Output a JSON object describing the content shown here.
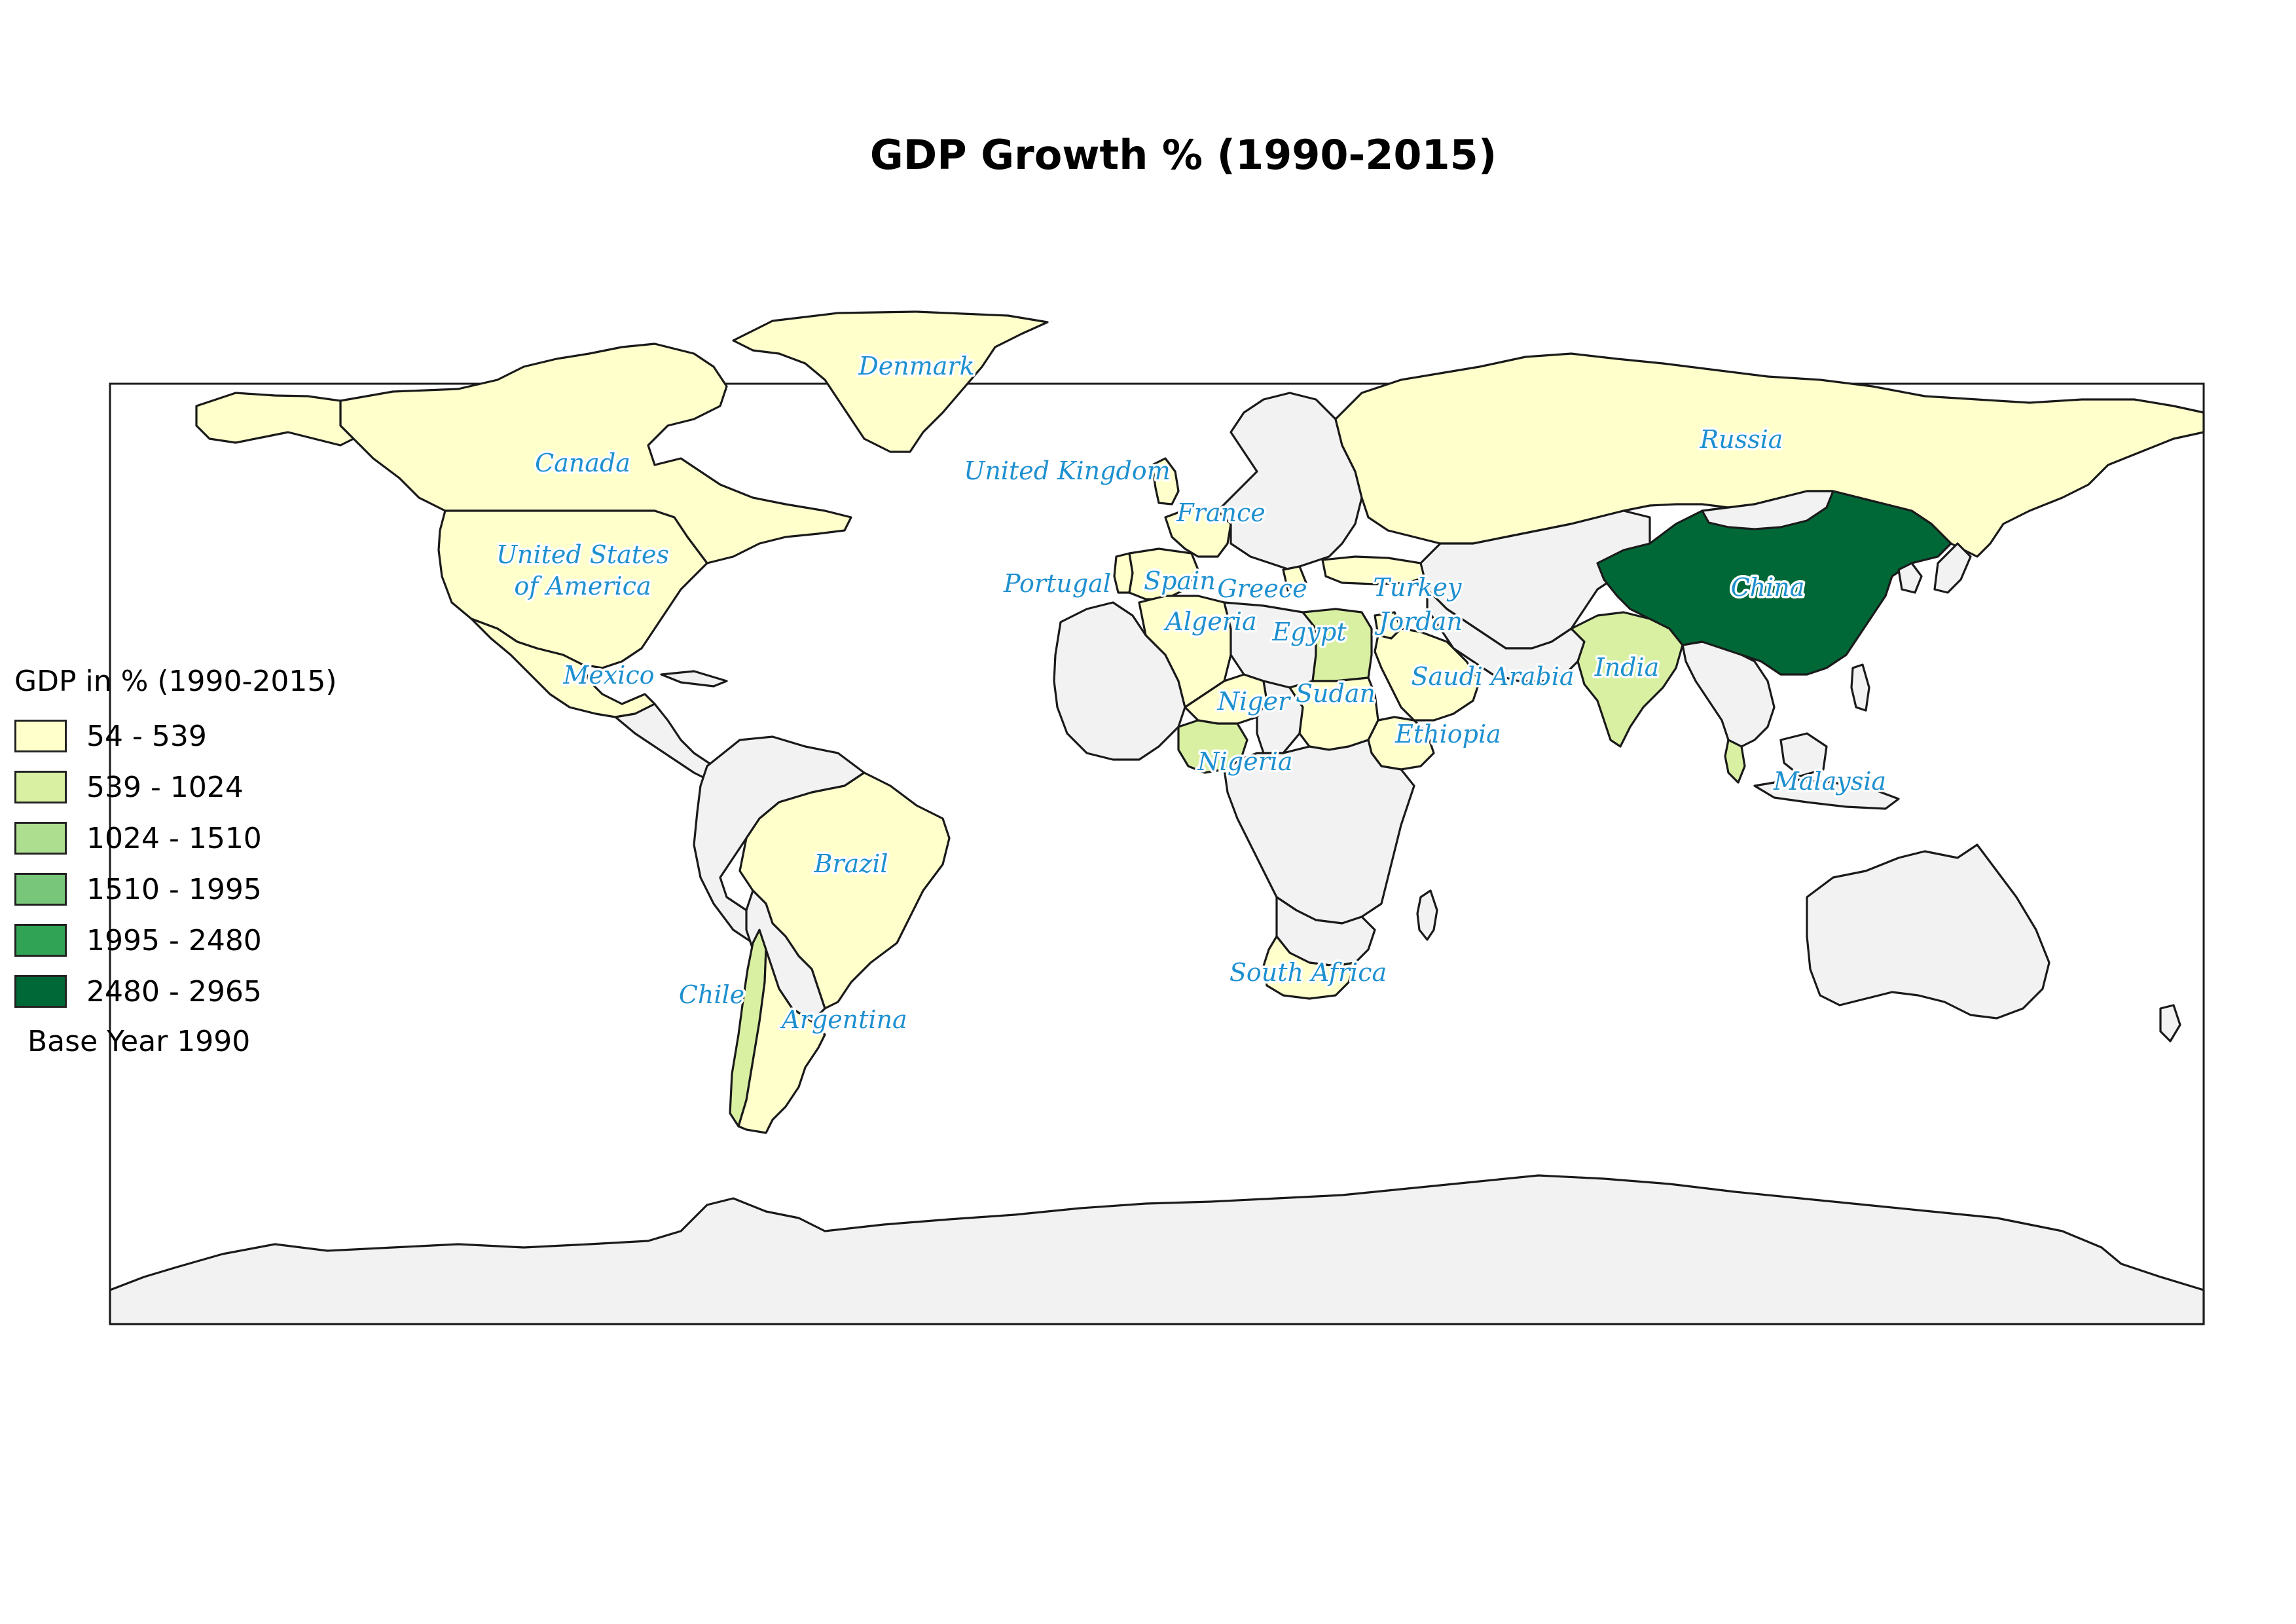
{
  "title": "GDP Growth % (1990-2015)",
  "colors": {
    "no_data": "#f2f2f2",
    "classes": [
      "#ffffcc",
      "#d9f0a3",
      "#addd8e",
      "#78c679",
      "#31a354",
      "#006837"
    ]
  },
  "legend": {
    "title": "GDP in % (1990-2015)",
    "items": [
      {
        "label": "54 - 539",
        "color": "#ffffcc"
      },
      {
        "label": "539 - 1024",
        "color": "#d9f0a3"
      },
      {
        "label": "1024 - 1510",
        "color": "#addd8e"
      },
      {
        "label": "1510 - 1995",
        "color": "#78c679"
      },
      {
        "label": "1995 - 2480",
        "color": "#31a354"
      },
      {
        "label": "2480 - 2965",
        "color": "#006837"
      }
    ],
    "note": "Base Year 1990"
  },
  "countries": [
    {
      "name": "Denmark",
      "label": "Denmark",
      "class": 0
    },
    {
      "name": "Canada",
      "label": "Canada",
      "class": 0
    },
    {
      "name": "United States of America",
      "label": "United States of America",
      "class": 0
    },
    {
      "name": "Mexico",
      "label": "Mexico",
      "class": 0
    },
    {
      "name": "Brazil",
      "label": "Brazil",
      "class": 0
    },
    {
      "name": "Chile",
      "label": "Chile",
      "class": 1
    },
    {
      "name": "Argentina",
      "label": "Argentina",
      "class": 0
    },
    {
      "name": "United Kingdom",
      "label": "United Kingdom",
      "class": 0
    },
    {
      "name": "France",
      "label": "France",
      "class": 0
    },
    {
      "name": "Portugal",
      "label": "Portugal",
      "class": 0
    },
    {
      "name": "Spain",
      "label": "Spain",
      "class": 0
    },
    {
      "name": "Greece",
      "label": "Greece",
      "class": 0
    },
    {
      "name": "Turkey",
      "label": "Turkey",
      "class": 0
    },
    {
      "name": "Algeria",
      "label": "Algeria",
      "class": 0
    },
    {
      "name": "Egypt",
      "label": "Egypt",
      "class": 1
    },
    {
      "name": "Jordan",
      "label": "Jordan",
      "class": 0
    },
    {
      "name": "Niger",
      "label": "Niger",
      "class": 0
    },
    {
      "name": "Sudan",
      "label": "Sudan",
      "class": 0
    },
    {
      "name": "Saudi Arabia",
      "label": "Saudi Arabia",
      "class": 0
    },
    {
      "name": "Nigeria",
      "label": "Nigeria",
      "class": 1
    },
    {
      "name": "Ethiopia",
      "label": "Ethiopia",
      "class": 0
    },
    {
      "name": "India",
      "label": "India",
      "class": 1
    },
    {
      "name": "Russia",
      "label": "Russia",
      "class": 0
    },
    {
      "name": "China",
      "label": "China",
      "class": 5
    },
    {
      "name": "Malaysia",
      "label": "Malaysia",
      "class": 1
    },
    {
      "name": "South Africa",
      "label": "South Africa",
      "class": 0
    }
  ]
}
